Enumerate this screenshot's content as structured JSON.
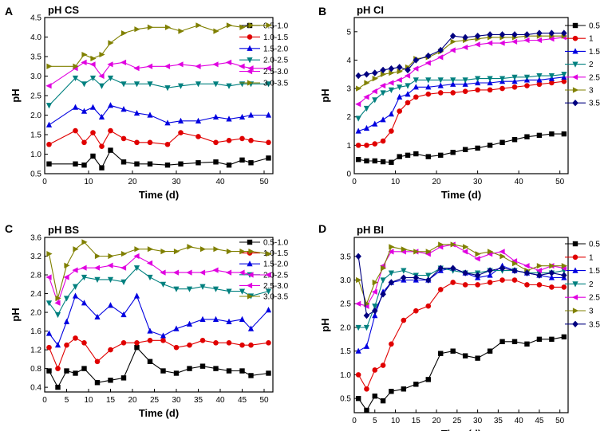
{
  "figure": {
    "x_label": "Time (d)",
    "y_label": "pH"
  },
  "chart_data": [
    {
      "panel": "A",
      "type": "line",
      "title": "pH CS",
      "xlim": [
        0,
        52
      ],
      "ylim": [
        0.5,
        4.5
      ],
      "x_ticks": [
        "0",
        "10",
        "20",
        "30",
        "40",
        "50"
      ],
      "y_ticks": [
        "0.5",
        "1.0",
        "1.5",
        "2.0",
        "2.5",
        "3.0",
        "3.5",
        "4.0",
        "4.5"
      ],
      "x": [
        1,
        7,
        9,
        11,
        13,
        15,
        18,
        21,
        24,
        28,
        31,
        35,
        39,
        42,
        45,
        47,
        51
      ],
      "series": [
        {
          "name": "0.5-1.0",
          "color": "#000000",
          "marker": "square",
          "values": [
            0.75,
            0.75,
            0.72,
            0.95,
            0.65,
            1.1,
            0.8,
            0.75,
            0.75,
            0.72,
            0.75,
            0.78,
            0.8,
            0.72,
            0.85,
            0.78,
            0.9
          ]
        },
        {
          "name": "1.0-1.5",
          "color": "#e00000",
          "marker": "circle",
          "values": [
            1.25,
            1.6,
            1.3,
            1.55,
            1.2,
            1.6,
            1.4,
            1.3,
            1.3,
            1.25,
            1.55,
            1.45,
            1.3,
            1.35,
            1.4,
            1.35,
            1.3
          ]
        },
        {
          "name": "1.5-2.0",
          "color": "#0000e0",
          "marker": "triangle-up",
          "values": [
            1.75,
            2.2,
            2.1,
            2.2,
            1.95,
            2.25,
            2.15,
            2.05,
            2.0,
            1.8,
            1.85,
            1.85,
            1.95,
            1.9,
            1.95,
            2.0,
            2.0
          ]
        },
        {
          "name": "2.0-2.5",
          "color": "#00807f",
          "marker": "triangle-down",
          "values": [
            2.25,
            2.95,
            2.8,
            2.95,
            2.75,
            2.95,
            2.8,
            2.8,
            2.8,
            2.7,
            2.75,
            2.8,
            2.8,
            2.75,
            2.8,
            2.8,
            2.8
          ]
        },
        {
          "name": "2.5-3.0",
          "color": "#e000e0",
          "marker": "triangle-left",
          "values": [
            2.75,
            3.2,
            3.35,
            3.3,
            3.0,
            3.3,
            3.35,
            3.2,
            3.25,
            3.25,
            3.3,
            3.25,
            3.3,
            3.35,
            3.25,
            3.2,
            3.2
          ]
        },
        {
          "name": "3.0-3.5",
          "color": "#808000",
          "marker": "triangle-right",
          "values": [
            3.25,
            3.25,
            3.55,
            3.45,
            3.55,
            3.85,
            4.1,
            4.2,
            4.25,
            4.25,
            4.15,
            4.3,
            4.15,
            4.3,
            4.25,
            4.3,
            4.3
          ]
        }
      ]
    },
    {
      "panel": "B",
      "type": "line",
      "title": "pH CI",
      "xlim": [
        0,
        52
      ],
      "ylim": [
        0,
        5.5
      ],
      "x_ticks": [
        "0",
        "10",
        "20",
        "30",
        "40",
        "50"
      ],
      "y_ticks": [
        "0",
        "1",
        "2",
        "3",
        "4",
        "5"
      ],
      "x": [
        1,
        3,
        5,
        7,
        9,
        11,
        13,
        15,
        18,
        21,
        24,
        27,
        30,
        33,
        36,
        39,
        42,
        45,
        48,
        51
      ],
      "series": [
        {
          "name": "0.5",
          "color": "#000000",
          "marker": "square",
          "values": [
            0.5,
            0.45,
            0.45,
            0.42,
            0.4,
            0.6,
            0.65,
            0.7,
            0.6,
            0.65,
            0.75,
            0.85,
            0.9,
            1.0,
            1.1,
            1.2,
            1.3,
            1.35,
            1.4,
            1.4
          ]
        },
        {
          "name": "1",
          "color": "#e00000",
          "marker": "circle",
          "values": [
            1.0,
            1.0,
            1.05,
            1.15,
            1.5,
            2.2,
            2.5,
            2.7,
            2.8,
            2.85,
            2.85,
            2.9,
            2.95,
            2.95,
            3.0,
            3.05,
            3.1,
            3.15,
            3.2,
            3.25
          ]
        },
        {
          "name": "1.5",
          "color": "#0000e0",
          "marker": "triangle-up",
          "values": [
            1.5,
            1.6,
            1.75,
            1.9,
            2.1,
            2.7,
            2.8,
            3.05,
            3.05,
            3.1,
            3.15,
            3.15,
            3.2,
            3.2,
            3.25,
            3.25,
            3.3,
            3.3,
            3.35,
            3.4
          ]
        },
        {
          "name": "2",
          "color": "#00807f",
          "marker": "triangle-down",
          "values": [
            1.95,
            2.3,
            2.6,
            2.85,
            2.95,
            3.05,
            3.1,
            3.3,
            3.3,
            3.3,
            3.3,
            3.3,
            3.35,
            3.35,
            3.35,
            3.4,
            3.4,
            3.45,
            3.45,
            3.5
          ]
        },
        {
          "name": "2.5",
          "color": "#e000e0",
          "marker": "triangle-left",
          "values": [
            2.45,
            2.7,
            2.9,
            3.1,
            3.2,
            3.3,
            3.45,
            3.7,
            3.9,
            4.1,
            4.35,
            4.45,
            4.55,
            4.6,
            4.6,
            4.65,
            4.7,
            4.7,
            4.75,
            4.8
          ]
        },
        {
          "name": "3",
          "color": "#808000",
          "marker": "triangle-right",
          "values": [
            3.0,
            3.2,
            3.35,
            3.5,
            3.55,
            3.6,
            3.75,
            4.05,
            4.1,
            4.3,
            4.65,
            4.7,
            4.75,
            4.8,
            4.8,
            4.8,
            4.85,
            4.85,
            4.85,
            4.85
          ]
        },
        {
          "name": "3.5",
          "color": "#000080",
          "marker": "diamond",
          "values": [
            3.45,
            3.5,
            3.55,
            3.65,
            3.7,
            3.75,
            3.65,
            4.0,
            4.15,
            4.35,
            4.85,
            4.8,
            4.85,
            4.9,
            4.9,
            4.9,
            4.9,
            4.95,
            4.95,
            4.95
          ]
        }
      ]
    },
    {
      "panel": "C",
      "type": "line",
      "title": "pH BS",
      "xlim": [
        0,
        52
      ],
      "ylim": [
        0.3,
        3.6
      ],
      "x_ticks": [
        "0",
        "5",
        "10",
        "15",
        "20",
        "25",
        "30",
        "35",
        "40",
        "45",
        "50"
      ],
      "y_ticks": [
        "0.4",
        "0.8",
        "1.2",
        "1.6",
        "2.0",
        "2.4",
        "2.8",
        "3.2",
        "3.6"
      ],
      "x": [
        1,
        3,
        5,
        7,
        9,
        12,
        15,
        18,
        21,
        24,
        27,
        30,
        33,
        36,
        39,
        42,
        45,
        47,
        51
      ],
      "series": [
        {
          "name": "0.5-1.0",
          "color": "#000000",
          "marker": "square",
          "values": [
            0.75,
            0.4,
            0.75,
            0.7,
            0.8,
            0.5,
            0.55,
            0.6,
            1.25,
            0.95,
            0.75,
            0.7,
            0.8,
            0.85,
            0.8,
            0.75,
            0.75,
            0.65,
            0.7
          ]
        },
        {
          "name": "1.0-1.5",
          "color": "#e00000",
          "marker": "circle",
          "values": [
            1.25,
            0.8,
            1.3,
            1.45,
            1.35,
            0.95,
            1.2,
            1.35,
            1.35,
            1.4,
            1.4,
            1.25,
            1.3,
            1.4,
            1.35,
            1.35,
            1.3,
            1.3,
            1.35
          ]
        },
        {
          "name": "1.5-2.0",
          "color": "#0000e0",
          "marker": "triangle-up",
          "values": [
            1.55,
            1.3,
            1.8,
            2.35,
            2.2,
            1.9,
            2.15,
            1.95,
            2.35,
            1.6,
            1.5,
            1.65,
            1.75,
            1.85,
            1.85,
            1.8,
            1.85,
            1.65,
            2.05
          ]
        },
        {
          "name": "2.0-2.5",
          "color": "#00807f",
          "marker": "triangle-down",
          "values": [
            2.2,
            1.95,
            2.3,
            2.55,
            2.75,
            2.7,
            2.7,
            2.65,
            2.95,
            2.75,
            2.6,
            2.5,
            2.5,
            2.55,
            2.5,
            2.45,
            2.45,
            2.35,
            2.45
          ]
        },
        {
          "name": "2.5-3.0",
          "color": "#e000e0",
          "marker": "triangle-left",
          "values": [
            2.75,
            2.2,
            2.75,
            2.9,
            2.95,
            2.95,
            3.0,
            2.95,
            3.2,
            3.05,
            2.85,
            2.85,
            2.85,
            2.85,
            2.9,
            2.85,
            2.85,
            2.8,
            2.8
          ]
        },
        {
          "name": "3.0-3.5",
          "color": "#808000",
          "marker": "triangle-right",
          "values": [
            3.25,
            2.3,
            3.0,
            3.35,
            3.5,
            3.2,
            3.2,
            3.25,
            3.35,
            3.35,
            3.3,
            3.3,
            3.4,
            3.35,
            3.35,
            3.3,
            3.3,
            3.3,
            3.25
          ]
        }
      ]
    },
    {
      "panel": "D",
      "type": "line",
      "title": "pH BI",
      "xlim": [
        0,
        52
      ],
      "ylim": [
        0.2,
        3.9
      ],
      "x_ticks": [
        "0",
        "5",
        "10",
        "15",
        "20",
        "25",
        "30",
        "35",
        "40",
        "45",
        "50"
      ],
      "y_ticks": [
        "0.5",
        "1.0",
        "1.5",
        "2.0",
        "2.5",
        "3.0",
        "3.5"
      ],
      "x": [
        1,
        3,
        5,
        7,
        9,
        12,
        15,
        18,
        21,
        24,
        27,
        30,
        33,
        36,
        39,
        42,
        45,
        48,
        51
      ],
      "series": [
        {
          "name": "0.5",
          "color": "#000000",
          "marker": "square",
          "values": [
            0.5,
            0.25,
            0.55,
            0.45,
            0.65,
            0.7,
            0.8,
            0.9,
            1.45,
            1.5,
            1.4,
            1.35,
            1.5,
            1.7,
            1.7,
            1.65,
            1.75,
            1.75,
            1.8
          ]
        },
        {
          "name": "1",
          "color": "#e00000",
          "marker": "circle",
          "values": [
            1.0,
            0.7,
            1.1,
            1.2,
            1.65,
            2.15,
            2.35,
            2.45,
            2.8,
            2.95,
            2.9,
            2.9,
            2.95,
            3.0,
            3.0,
            2.9,
            2.9,
            2.85,
            2.85
          ]
        },
        {
          "name": "1.5",
          "color": "#0000e0",
          "marker": "triangle-up",
          "values": [
            1.5,
            1.6,
            2.25,
            2.75,
            2.95,
            3.0,
            3.0,
            3.0,
            3.2,
            3.25,
            3.15,
            3.05,
            3.1,
            3.3,
            3.2,
            3.15,
            3.1,
            3.05,
            3.05
          ]
        },
        {
          "name": "2",
          "color": "#00807f",
          "marker": "triangle-down",
          "values": [
            2.0,
            2.0,
            2.45,
            3.0,
            3.15,
            3.2,
            3.1,
            3.1,
            3.25,
            3.2,
            3.15,
            3.15,
            3.2,
            3.2,
            3.2,
            3.15,
            3.15,
            3.15,
            3.2
          ]
        },
        {
          "name": "2.5",
          "color": "#e000e0",
          "marker": "triangle-left",
          "values": [
            2.5,
            2.45,
            2.75,
            3.3,
            3.6,
            3.6,
            3.6,
            3.55,
            3.7,
            3.75,
            3.6,
            3.45,
            3.55,
            3.6,
            3.4,
            3.3,
            3.2,
            3.3,
            3.25
          ]
        },
        {
          "name": "3",
          "color": "#808000",
          "marker": "triangle-right",
          "values": [
            3.0,
            2.5,
            2.95,
            3.25,
            3.7,
            3.65,
            3.6,
            3.6,
            3.75,
            3.75,
            3.7,
            3.55,
            3.6,
            3.5,
            3.35,
            3.2,
            3.3,
            3.3,
            3.3
          ]
        },
        {
          "name": "3.5",
          "color": "#000080",
          "marker": "diamond",
          "values": [
            3.5,
            2.25,
            2.35,
            2.7,
            2.95,
            3.05,
            3.05,
            3.0,
            3.25,
            3.25,
            3.15,
            3.1,
            3.2,
            3.25,
            3.2,
            3.15,
            3.1,
            3.15,
            3.1
          ]
        }
      ]
    }
  ]
}
